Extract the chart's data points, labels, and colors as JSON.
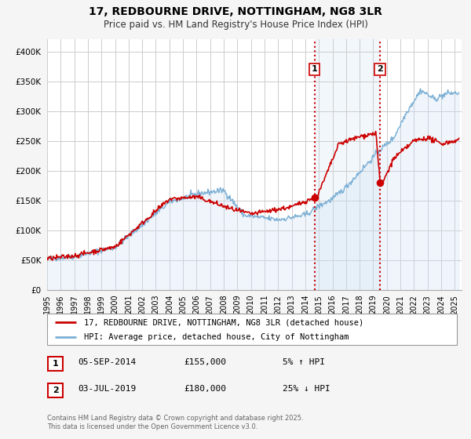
{
  "title": "17, REDBOURNE DRIVE, NOTTINGHAM, NG8 3LR",
  "subtitle": "Price paid vs. HM Land Registry's House Price Index (HPI)",
  "legend_line1": "17, REDBOURNE DRIVE, NOTTINGHAM, NG8 3LR (detached house)",
  "legend_line2": "HPI: Average price, detached house, City of Nottingham",
  "annotation1_label": "1",
  "annotation1_date": "05-SEP-2014",
  "annotation1_price": "£155,000",
  "annotation1_hpi": "5% ↑ HPI",
  "annotation1_year": 2014.67,
  "annotation1_value": 155000,
  "annotation2_label": "2",
  "annotation2_date": "03-JUL-2019",
  "annotation2_price": "£180,000",
  "annotation2_hpi": "25% ↓ HPI",
  "annotation2_year": 2019.5,
  "annotation2_value": 180000,
  "background_color": "#f5f5f5",
  "plot_bg_color": "#ffffff",
  "red_line_color": "#cc0000",
  "blue_line_color": "#7bafd4",
  "blue_fill_color": "#cce0f5",
  "shade_color": "#daeaf8",
  "grid_color": "#cccccc",
  "ylim": [
    0,
    420000
  ],
  "xlim_start": 1995,
  "xlim_end": 2025.5,
  "yticks": [
    0,
    50000,
    100000,
    150000,
    200000,
    250000,
    300000,
    350000,
    400000
  ],
  "ytick_labels": [
    "£0",
    "£50K",
    "£100K",
    "£150K",
    "£200K",
    "£250K",
    "£300K",
    "£350K",
    "£400K"
  ],
  "xtick_years": [
    1995,
    1996,
    1997,
    1998,
    1999,
    2000,
    2001,
    2002,
    2003,
    2004,
    2005,
    2006,
    2007,
    2008,
    2009,
    2010,
    2011,
    2012,
    2013,
    2014,
    2015,
    2016,
    2017,
    2018,
    2019,
    2020,
    2021,
    2022,
    2023,
    2024,
    2025
  ],
  "footer": "Contains HM Land Registry data © Crown copyright and database right 2025.\nThis data is licensed under the Open Government Licence v3.0."
}
